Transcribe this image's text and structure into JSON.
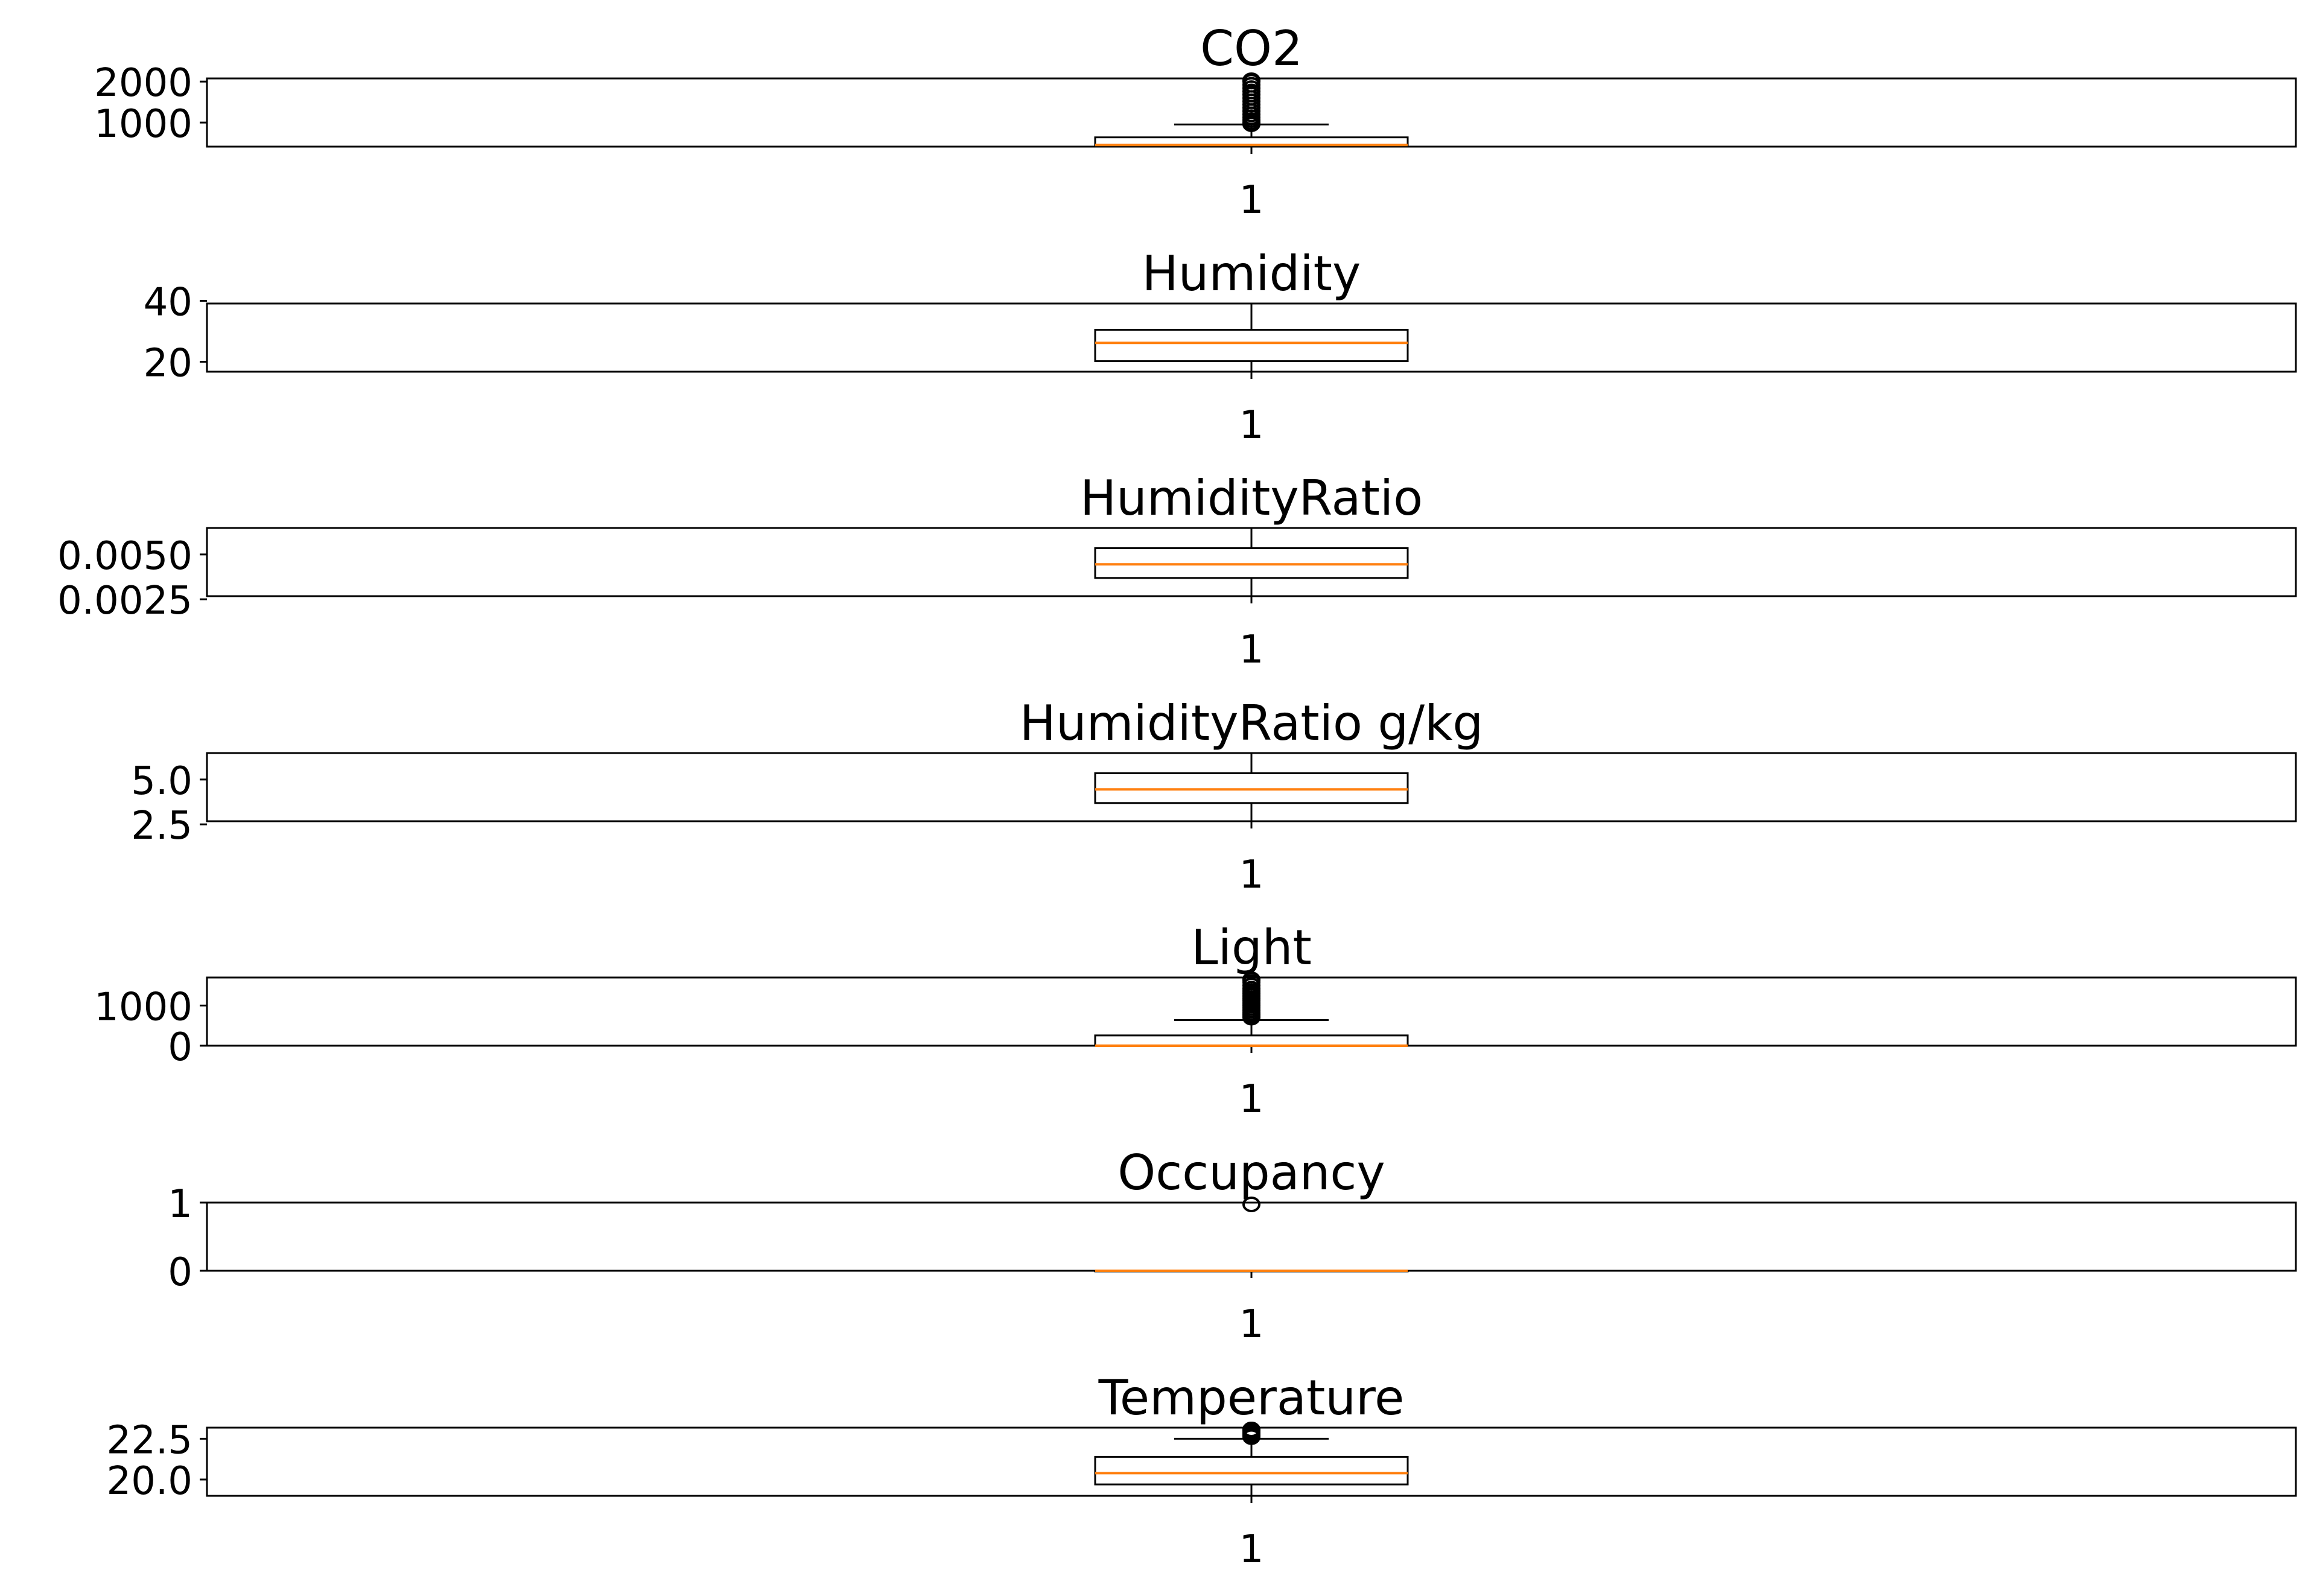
{
  "chart_data": [
    {
      "type": "box",
      "title": "CO2",
      "categories": [
        "1"
      ],
      "yticks": [
        1000,
        2000
      ],
      "ylim": [
        412.75,
        2076.5
      ],
      "box": {
        "q1": 439.0,
        "median": 453.5,
        "q3": 638.8,
        "whisker_low": 412.75,
        "whisker_high": 954.25
      },
      "outliers": [
        960,
        1000,
        1060,
        1130,
        1200,
        1280,
        1360,
        1440,
        1520,
        1600,
        1680,
        1760,
        1840,
        1920,
        2000,
        2076
      ]
    },
    {
      "type": "box",
      "title": "Humidity",
      "categories": [
        "1"
      ],
      "yticks": [
        20,
        40
      ],
      "ylim": [
        16.745,
        39.1175
      ],
      "box": {
        "q1": 20.2,
        "median": 26.2,
        "q3": 30.5,
        "whisker_low": 16.745,
        "whisker_high": 39.1175
      },
      "outliers": []
    },
    {
      "type": "box",
      "title": "HumidityRatio",
      "categories": [
        "1"
      ],
      "yticks": [
        0.0025,
        0.005
      ],
      "ylim": [
        0.002674,
        0.006476
      ],
      "box": {
        "q1": 0.00369,
        "median": 0.004447,
        "q3": 0.005352,
        "whisker_low": 0.002674,
        "whisker_high": 0.006476
      },
      "outliers": []
    },
    {
      "type": "box",
      "title": "HumidityRatio g/kg",
      "categories": [
        "1"
      ],
      "yticks": [
        2.5,
        5.0
      ],
      "ylim": [
        2.674,
        6.476
      ],
      "box": {
        "q1": 3.69,
        "median": 4.447,
        "q3": 5.352,
        "whisker_low": 2.674,
        "whisker_high": 6.476
      },
      "outliers": []
    },
    {
      "type": "box",
      "title": "Light",
      "categories": [
        "1"
      ],
      "yticks": [
        0,
        1000
      ],
      "ylim": [
        0,
        1697.25
      ],
      "box": {
        "q1": 0,
        "median": 0,
        "q3": 256.4,
        "whisker_low": 0,
        "whisker_high": 638.8
      },
      "outliers": [
        700,
        740,
        780,
        820,
        880,
        940,
        1000,
        1060,
        1120,
        1180,
        1240,
        1300,
        1360,
        1420,
        1500,
        1580,
        1640,
        1697
      ]
    },
    {
      "type": "box",
      "title": "Occupancy",
      "categories": [
        "1"
      ],
      "yticks": [
        0,
        1
      ],
      "ylim": [
        0,
        1
      ],
      "box": {
        "q1": 0,
        "median": 0,
        "q3": 0,
        "whisker_low": 0,
        "whisker_high": 0
      },
      "outliers": [
        1
      ]
    },
    {
      "type": "box",
      "title": "Temperature",
      "categories": [
        "1"
      ],
      "yticks": [
        20.0,
        22.5
      ],
      "ylim": [
        19.0,
        23.18
      ],
      "box": {
        "q1": 19.7,
        "median": 20.39,
        "q3": 21.39,
        "whisker_low": 19.0,
        "whisker_high": 22.5
      },
      "outliers": [
        22.6,
        22.7,
        22.8,
        22.9,
        23.0,
        23.1,
        23.18
      ]
    }
  ],
  "colors": {
    "box": "#000000",
    "median": "#ff7f0e",
    "outlier": "#000000",
    "frame": "#000000"
  }
}
